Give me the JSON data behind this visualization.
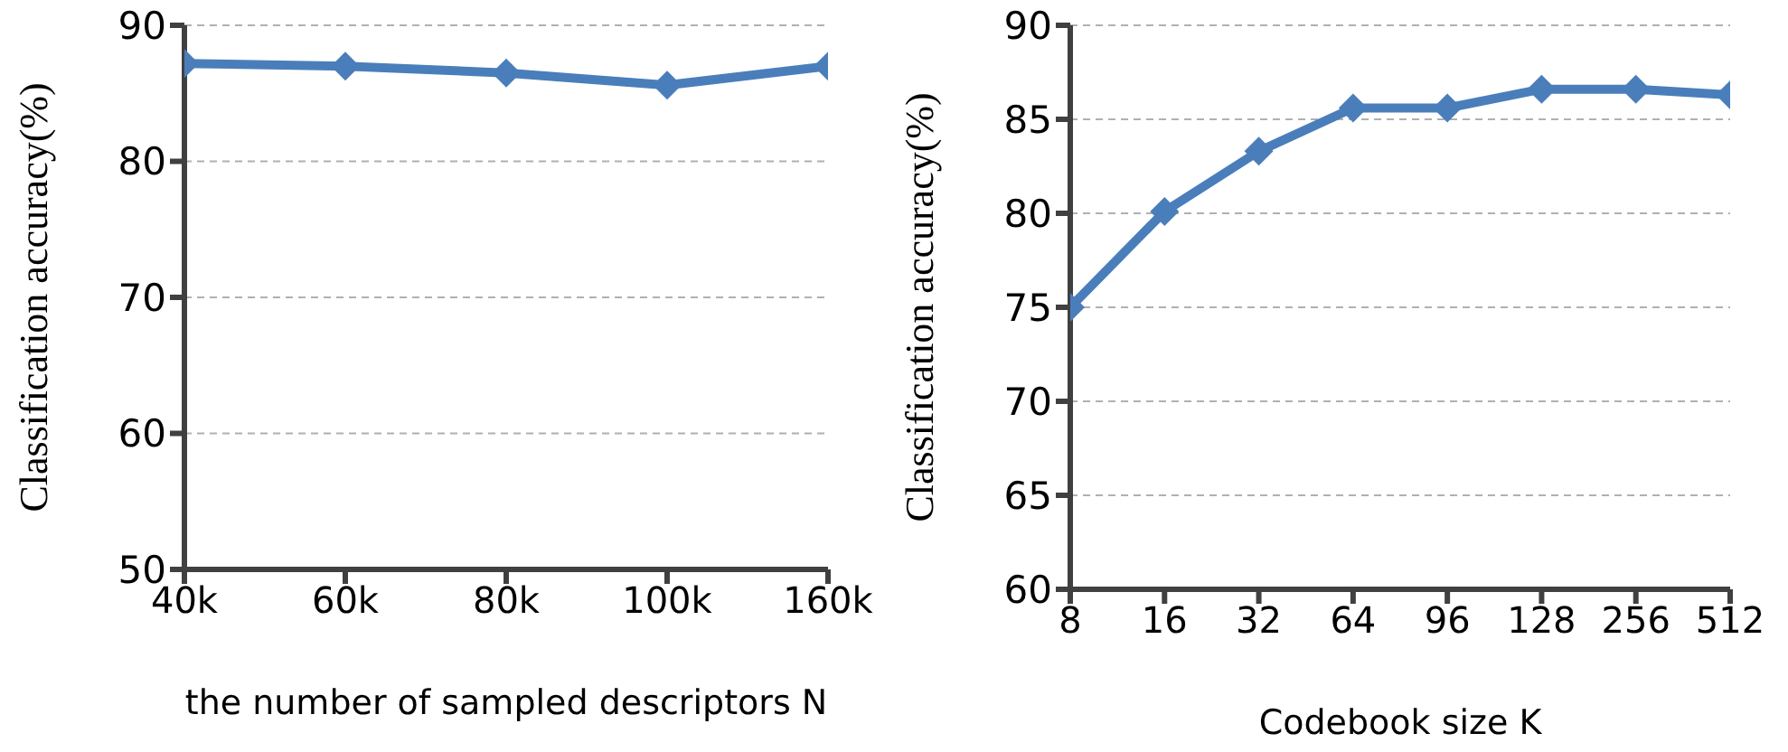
{
  "chart_data": [
    {
      "type": "line",
      "xlabel": "the number of sampled descriptors N",
      "ylabel": "Classification accuracy(%)",
      "categories": [
        "40k",
        "60k",
        "80k",
        "100k",
        "160k"
      ],
      "series": [
        {
          "color": "#4a7ebb",
          "values": [
            87.2,
            87.0,
            86.5,
            85.6,
            87.0
          ]
        }
      ],
      "ylim": [
        50,
        90
      ],
      "yticks": [
        50,
        60,
        70,
        80,
        90
      ],
      "grid": "y",
      "marker": "diamond",
      "legend": false
    },
    {
      "type": "line",
      "xlabel": "Codebook size K",
      "ylabel": "Classification accuracy(%)",
      "categories": [
        "8",
        "16",
        "32",
        "64",
        "96",
        "128",
        "256",
        "512"
      ],
      "series": [
        {
          "color": "#4a7ebb",
          "values": [
            75.0,
            80.1,
            83.3,
            85.6,
            85.6,
            86.6,
            86.6,
            86.3
          ]
        }
      ],
      "ylim": [
        60,
        90
      ],
      "yticks": [
        60,
        65,
        70,
        75,
        80,
        85,
        90
      ],
      "grid": "y",
      "marker": "diamond",
      "legend": false
    }
  ]
}
